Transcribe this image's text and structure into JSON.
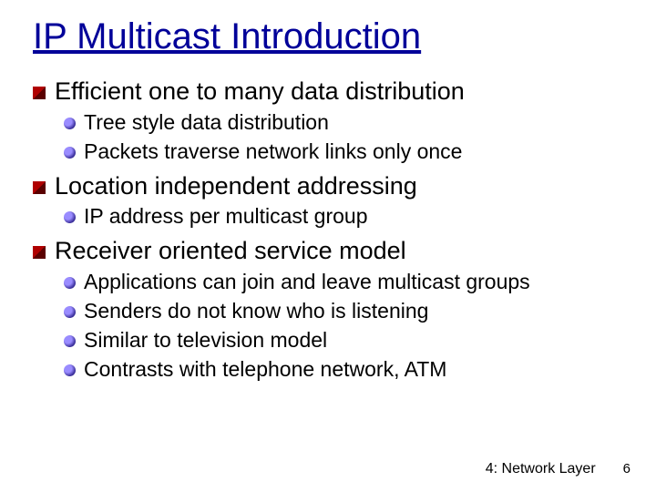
{
  "title": "IP Multicast Introduction",
  "colors": {
    "title_color": "#000099",
    "text_color": "#000000",
    "background": "#ffffff",
    "l1_bullet_gradient_from": "#b00000",
    "l1_bullet_gradient_to": "#5a0000",
    "l2_bullet_gradient_from": "#9a8cff",
    "l2_bullet_gradient_to": "#3a2f99"
  },
  "typography": {
    "font_family": "Comic Sans MS",
    "title_fontsize": 40,
    "l1_fontsize": 27,
    "l2_fontsize": 23,
    "footer_fontsize": 16
  },
  "bullets": [
    {
      "level": 1,
      "text": "Efficient one to many data distribution"
    },
    {
      "level": 2,
      "text": "Tree style data distribution"
    },
    {
      "level": 2,
      "text": "Packets traverse network links only once"
    },
    {
      "level": 1,
      "text": "Location independent addressing"
    },
    {
      "level": 2,
      "text": "IP address per multicast group"
    },
    {
      "level": 1,
      "text": "Receiver oriented service model"
    },
    {
      "level": 2,
      "text": "Applications can join and leave multicast groups"
    },
    {
      "level": 2,
      "text": "Senders do not know who is listening"
    },
    {
      "level": 2,
      "text": "Similar to television model"
    },
    {
      "level": 2,
      "text": "Contrasts with telephone network, ATM"
    }
  ],
  "footer": {
    "section": "4: Network Layer",
    "page_number": "6"
  }
}
